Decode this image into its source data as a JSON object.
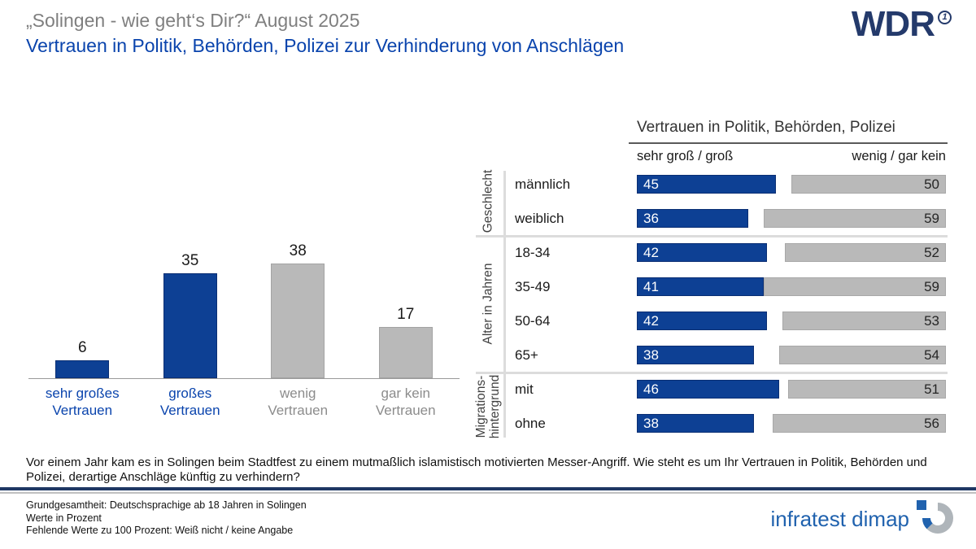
{
  "header": {
    "title": "„Solingen - wie geht‘s Dir?“ August 2025",
    "subtitle": "Vertrauen in Politik, Behörden, Polizei zur Verhinderung von Anschlägen",
    "brand": "WDR",
    "brand_mark": "1"
  },
  "colors": {
    "bar_blue": "#0d4094",
    "bar_gray": "#b9b9b9",
    "subtitle_blue": "#0a44ad",
    "title_gray": "#7f7f7f",
    "wdr_navy": "#243a6b",
    "dimap_blue": "#2062ae",
    "divider_navy": "#1f3864"
  },
  "chart_data": [
    {
      "type": "bar",
      "title": "",
      "categories": [
        "sehr großes Vertrauen",
        "großes Vertrauen",
        "wenig Vertrauen",
        "gar kein Vertrauen"
      ],
      "label_lines": [
        [
          "sehr großes",
          "Vertrauen"
        ],
        [
          "großes",
          "Vertrauen"
        ],
        [
          "wenig",
          "Vertrauen"
        ],
        [
          "gar kein",
          "Vertrauen"
        ]
      ],
      "values": [
        6,
        35,
        38,
        17
      ],
      "emphasized": [
        true,
        true,
        false,
        false
      ],
      "xlabel": "",
      "ylabel": "",
      "ylim": [
        0,
        45
      ],
      "grid": false,
      "unit": "Prozent"
    },
    {
      "type": "bar",
      "orientation": "horizontal-paired",
      "title": "Vertrauen in Politik, Behörden, Polizei",
      "series_labels": [
        "sehr groß / groß",
        "wenig / gar kein"
      ],
      "xlim": [
        0,
        100
      ],
      "grid": false,
      "groups": [
        {
          "label": "Geschlecht",
          "rows": [
            {
              "label": "männlich",
              "high": 45,
              "low": 50
            },
            {
              "label": "weiblich",
              "high": 36,
              "low": 59
            }
          ]
        },
        {
          "label": "Alter in Jahren",
          "rows": [
            {
              "label": "18-34",
              "high": 42,
              "low": 52
            },
            {
              "label": "35-49",
              "high": 41,
              "low": 59
            },
            {
              "label": "50-64",
              "high": 42,
              "low": 53
            },
            {
              "label": "65+",
              "high": 38,
              "low": 54
            }
          ]
        },
        {
          "label": "Migrations-\nhintergrund",
          "rows": [
            {
              "label": "mit",
              "high": 46,
              "low": 51
            },
            {
              "label": "ohne",
              "high": 38,
              "low": 56
            }
          ]
        }
      ]
    }
  ],
  "question": "Vor einem Jahr kam es in Solingen beim Stadtfest zu einem mutmaßlich islamistisch motivierten Messer-Angriff. Wie steht es um Ihr Vertrauen in Politik, Behörden und Polizei, derartige Anschläge künftig zu verhindern?",
  "footer": {
    "lines": [
      "Grundgesamtheit: Deutschsprachige ab 18 Jahren in Solingen",
      "Werte in Prozent",
      "Fehlende Werte zu 100 Prozent: Weiß nicht / keine Angabe"
    ],
    "brand": "infratest dimap"
  }
}
